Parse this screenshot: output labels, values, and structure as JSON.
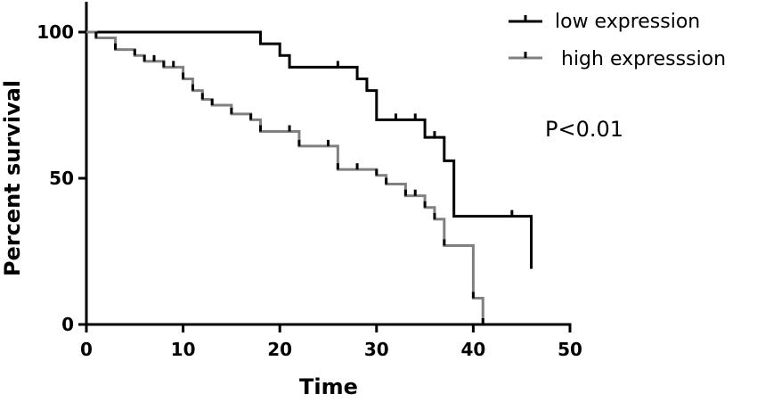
{
  "chart_data": {
    "type": "line",
    "subtype": "kaplan-meier step",
    "xlabel": "Time",
    "ylabel": "Percent survival",
    "xlim": [
      0,
      50
    ],
    "ylim": [
      0,
      100
    ],
    "xticks": [
      0,
      10,
      20,
      30,
      40,
      50
    ],
    "yticks": [
      0,
      50,
      100
    ],
    "grid": false,
    "legend_position": "top-right",
    "annotation": "P<0.01",
    "series": [
      {
        "name": "low expression",
        "color": "#000000",
        "steps": [
          [
            0,
            100
          ],
          [
            18,
            96
          ],
          [
            20,
            92
          ],
          [
            21,
            88
          ],
          [
            28,
            84
          ],
          [
            29,
            80
          ],
          [
            30,
            70
          ],
          [
            35,
            64
          ],
          [
            37,
            56
          ],
          [
            38,
            37
          ],
          [
            46,
            19
          ]
        ],
        "end": 46,
        "censored": [
          26,
          29,
          32,
          34,
          36,
          44
        ]
      },
      {
        "name": "high expresssion",
        "color": "#808080",
        "steps": [
          [
            0,
            100
          ],
          [
            1,
            98
          ],
          [
            3,
            94
          ],
          [
            5,
            92
          ],
          [
            6,
            90
          ],
          [
            8,
            88
          ],
          [
            10,
            84
          ],
          [
            11,
            80
          ],
          [
            12,
            77
          ],
          [
            13,
            75
          ],
          [
            15,
            72
          ],
          [
            17,
            70
          ],
          [
            18,
            66
          ],
          [
            22,
            61
          ],
          [
            26,
            53
          ],
          [
            30,
            51
          ],
          [
            31,
            48
          ],
          [
            33,
            44
          ],
          [
            35,
            40
          ],
          [
            36,
            36
          ],
          [
            37,
            27
          ],
          [
            40,
            9
          ],
          [
            41,
            0
          ]
        ],
        "end": 41,
        "censored": [
          1,
          3,
          5,
          6,
          7,
          8,
          9,
          10,
          11,
          12,
          13,
          15,
          17,
          18,
          21,
          22,
          25,
          26,
          28,
          30,
          31,
          33,
          34,
          35,
          36,
          37,
          40,
          41
        ]
      }
    ]
  }
}
